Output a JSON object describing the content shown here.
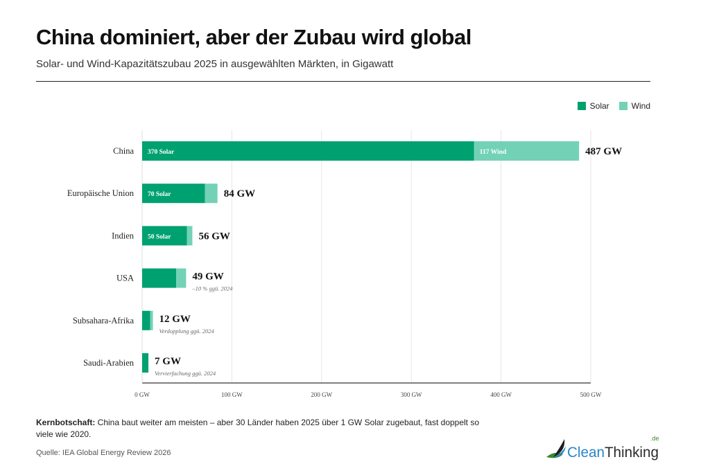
{
  "header": {
    "title": "China dominiert, aber der Zubau wird global",
    "subtitle": "Solar- und Wind-Kapazitätszubau 2025 in ausgewählten Märkten, in Gigawatt"
  },
  "chart_data": {
    "type": "bar",
    "orientation": "horizontal",
    "stacked": true,
    "categories": [
      "China",
      "Europäische Union",
      "Indien",
      "USA",
      "Subsahara-Afrika",
      "Saudi-Arabien"
    ],
    "series": [
      {
        "name": "Solar",
        "color": "#00a171",
        "values": [
          370,
          70,
          50,
          38,
          9,
          7
        ]
      },
      {
        "name": "Wind",
        "color": "#73d2b6",
        "values": [
          117,
          14,
          6,
          11,
          3,
          0
        ]
      }
    ],
    "totals": [
      "487 GW",
      "84 GW",
      "56 GW",
      "49 GW",
      "12 GW",
      "7 GW"
    ],
    "segment_labels": [
      [
        "370 Solar",
        "117 Wind"
      ],
      [
        "70 Solar",
        ""
      ],
      [
        "50 Solar",
        ""
      ],
      [
        "",
        ""
      ],
      [
        "",
        ""
      ],
      [
        "",
        ""
      ]
    ],
    "annotations": [
      "",
      "",
      "",
      "–10 % ggü. 2024",
      "Verdopplung ggü. 2024",
      "Vervierfachung ggü. 2024"
    ],
    "xlim": [
      0,
      500
    ],
    "xticks": [
      0,
      100,
      200,
      300,
      400,
      500
    ],
    "xtick_labels": [
      "0 GW",
      "100 GW",
      "200 GW",
      "300 GW",
      "400 GW",
      "500 GW"
    ],
    "grid": true,
    "legend": "top-right"
  },
  "legend": {
    "solar": "Solar",
    "wind": "Wind"
  },
  "footer": {
    "key_label": "Kernbotschaft:",
    "key_text": " China baut weiter am meisten – aber 30 Länder haben 2025 über 1 GW Solar zugebaut, fast doppelt so viele wie 2020.",
    "source": "Quelle: IEA Global Energy Review 2026"
  },
  "logo": {
    "text_a": "Clean",
    "text_b": "Thinking",
    "suffix": ".de"
  }
}
